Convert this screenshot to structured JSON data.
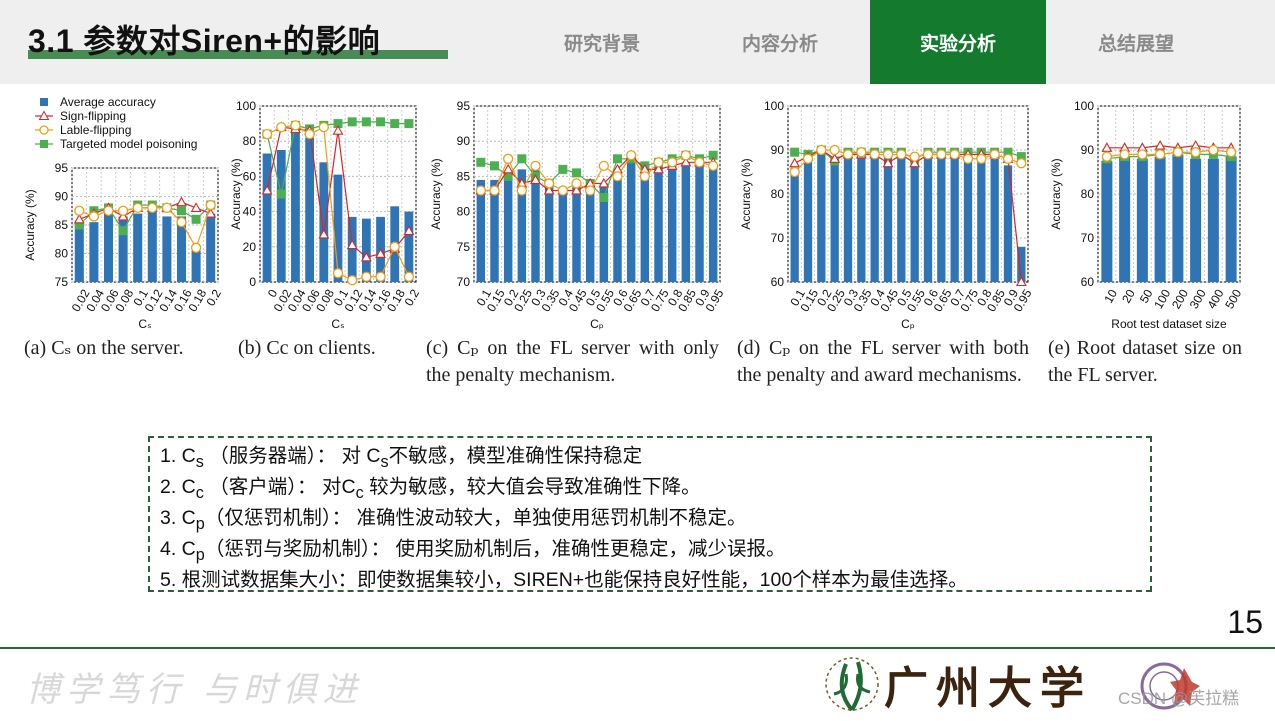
{
  "header": {
    "title": "3.1 参数对Siren+的影响",
    "tabs": [
      {
        "label": "研究背景",
        "active": false
      },
      {
        "label": "内容分析",
        "active": false
      },
      {
        "label": "实验分析",
        "active": true
      },
      {
        "label": "总结展望",
        "active": false
      }
    ]
  },
  "legend": [
    "Average accuracy",
    "Sign-flipping",
    "Lable-flipping",
    "Targeted model poisoning"
  ],
  "colors": {
    "bar": "#2f74b5",
    "sign": "#d62728",
    "label": "#f39c12",
    "target": "#4caf50",
    "accent": "#137a2e"
  },
  "chart_data": [
    {
      "type": "bar",
      "xlabel": "Cₛ",
      "ylabel": "Accuracy (%)",
      "ylim": [
        75,
        95
      ],
      "yticks": [
        75,
        80,
        85,
        90,
        95
      ],
      "categories": [
        "0.02",
        "0.04",
        "0.06",
        "0.08",
        "0.1",
        "0.12",
        "0.14",
        "0.16",
        "0.18",
        "0.2"
      ],
      "values": [
        85.5,
        85.5,
        87,
        86.5,
        87,
        87.5,
        86.5,
        86.5,
        80.5,
        87
      ],
      "lines": {
        "sign": [
          86,
          87,
          88,
          86.5,
          88,
          88,
          88,
          89,
          88,
          87
        ],
        "label": [
          87.5,
          86.5,
          87.5,
          87.5,
          88,
          88,
          88,
          85.5,
          81,
          88.5
        ],
        "target": [
          85,
          87.5,
          88,
          84,
          88.5,
          88.5,
          88,
          87.5,
          86,
          88.5
        ]
      },
      "caption": "(a) Cₛ on the server."
    },
    {
      "type": "bar",
      "xlabel": "Cₛ",
      "ylabel": "Accuracy (%)",
      "ylim": [
        0,
        100
      ],
      "yticks": [
        0,
        20,
        40,
        60,
        80,
        100
      ],
      "categories": [
        "0",
        "0.02",
        "0.04",
        "0.06",
        "0.08",
        "0.1",
        "0.12",
        "0.14",
        "0.16",
        "0.18",
        "0.2"
      ],
      "values": [
        73,
        75,
        88,
        82,
        68,
        61,
        37,
        36,
        37,
        43,
        40
      ],
      "lines": {
        "sign": [
          52,
          88,
          87,
          86,
          27,
          86,
          21,
          14,
          16,
          19,
          29
        ],
        "label": [
          84,
          88,
          89,
          84,
          88,
          5,
          1,
          3,
          3,
          20,
          3
        ],
        "target": [
          84,
          50,
          89,
          87,
          89,
          90,
          91,
          91,
          91,
          90,
          90
        ]
      },
      "caption": "(b) Cc on clients."
    },
    {
      "type": "bar",
      "xlabel": "Cₚ",
      "ylabel": "Accuracy (%)",
      "ylim": [
        70,
        95
      ],
      "yticks": [
        70,
        75,
        80,
        85,
        90,
        95
      ],
      "categories": [
        "0.1",
        "0.15",
        "0.2",
        "0.25",
        "0.3",
        "0.35",
        "0.4",
        "0.45",
        "0.5",
        "0.55",
        "0.6",
        "0.65",
        "0.7",
        "0.75",
        "0.8",
        "0.85",
        "0.9",
        "0.95"
      ],
      "values": [
        84.5,
        84.5,
        85.5,
        86,
        86,
        83.5,
        83,
        83.5,
        83,
        84,
        86,
        87,
        87,
        86.5,
        87,
        87,
        86.5,
        86.5
      ],
      "lines": {
        "sign": [
          83,
          83,
          86,
          84,
          84.5,
          83,
          83,
          83,
          84,
          84,
          86,
          88,
          86,
          86,
          86.5,
          87,
          87,
          87
        ],
        "label": [
          83,
          83,
          87.5,
          83,
          86.5,
          84,
          83,
          84,
          83,
          86.5,
          85,
          88,
          85,
          87,
          87,
          88,
          87,
          86.5
        ],
        "target": [
          87,
          86.5,
          85,
          87.5,
          85,
          84,
          86,
          85.5,
          84,
          82,
          87.5,
          87.5,
          86.5,
          87,
          87.5,
          88,
          87.5,
          88
        ]
      },
      "caption": "(c) Cₚ on the FL server with only the penalty mechanism."
    },
    {
      "type": "bar",
      "xlabel": "Cₚ",
      "ylabel": "Accuracy (%)",
      "ylim": [
        60,
        100
      ],
      "yticks": [
        60,
        70,
        80,
        90,
        100
      ],
      "categories": [
        "0.1",
        "0.15",
        "0.2",
        "0.25",
        "0.3",
        "0.35",
        "0.4",
        "0.45",
        "0.5",
        "0.55",
        "0.6",
        "0.65",
        "0.7",
        "0.75",
        "0.8",
        "0.85",
        "0.9",
        "0.95"
      ],
      "values": [
        86,
        88,
        89,
        88,
        88.5,
        89,
        89,
        88.5,
        88.5,
        87.5,
        88.5,
        88.5,
        88.5,
        88.5,
        88,
        88,
        86.5,
        68
      ],
      "lines": {
        "sign": [
          87,
          88.5,
          90,
          88,
          89,
          89,
          89,
          87,
          89,
          87,
          89,
          89,
          89,
          89,
          89,
          89,
          88,
          60
        ],
        "label": [
          85,
          88,
          90,
          90,
          89,
          89.5,
          89,
          89,
          89,
          88.5,
          89,
          89,
          89,
          88,
          88,
          89,
          88,
          87
        ],
        "target": [
          89.5,
          89,
          90,
          87.5,
          89.5,
          89.5,
          89.5,
          89.5,
          89.5,
          88,
          89.5,
          89.5,
          89.5,
          89.5,
          89.5,
          89.5,
          89.5,
          88.5
        ]
      },
      "caption": "(d) Cₚ on the FL server with both the penalty and award mechanisms."
    },
    {
      "type": "bar",
      "xlabel": "Root test dataset size",
      "ylabel": "Accuracy (%)",
      "ylim": [
        60,
        100
      ],
      "yticks": [
        60,
        70,
        80,
        90,
        100
      ],
      "categories": [
        "10",
        "20",
        "50",
        "100",
        "200",
        "300",
        "400",
        "500"
      ],
      "values": [
        87.5,
        88.5,
        88,
        88.5,
        89,
        88,
        88,
        88.5
      ],
      "lines": {
        "sign": [
          90.5,
          90.5,
          90.5,
          91,
          90.5,
          91,
          90.5,
          90.5
        ],
        "label": [
          88.5,
          89,
          89,
          89,
          89.5,
          89.5,
          90,
          89.5
        ],
        "target": [
          88,
          88.5,
          88.5,
          89,
          89.5,
          89,
          89,
          88.5
        ]
      },
      "caption": "(e) Root dataset size on the FL server."
    }
  ],
  "summary": [
    {
      "num": "1. C",
      "sub": "s",
      "rest": " （服务器端）： 对 C",
      "sub2": "s",
      "rest2": "不敏感，模型准确性保持稳定"
    },
    {
      "num": "2. C",
      "sub": "c",
      "rest": " （客户端）： 对C",
      "sub2": "c",
      "rest2": " 较为敏感，较大值会导致准确性下降。"
    },
    {
      "num": "3. C",
      "sub": "p",
      "rest": "（仅惩罚机制）： 准确性波动较大，单独使用惩罚机制不稳定。",
      "sub2": "",
      "rest2": ""
    },
    {
      "num": "4. C",
      "sub": "p",
      "rest": "（惩罚与奖励机制）： 使用奖励机制后，准确性更稳定，减少误报。",
      "sub2": "",
      "rest2": ""
    },
    {
      "num": "5. 根测试数据集大小：即使数据集较小，SIREN+也能保持良好性能，100个样本为最佳选择。",
      "sub": "",
      "rest": "",
      "sub2": "",
      "rest2": ""
    }
  ],
  "page_number": "15",
  "footer": {
    "motto": "博学笃行 与时俱进",
    "university": "广州大学",
    "watermark": "CSDN @芙拉糕"
  }
}
